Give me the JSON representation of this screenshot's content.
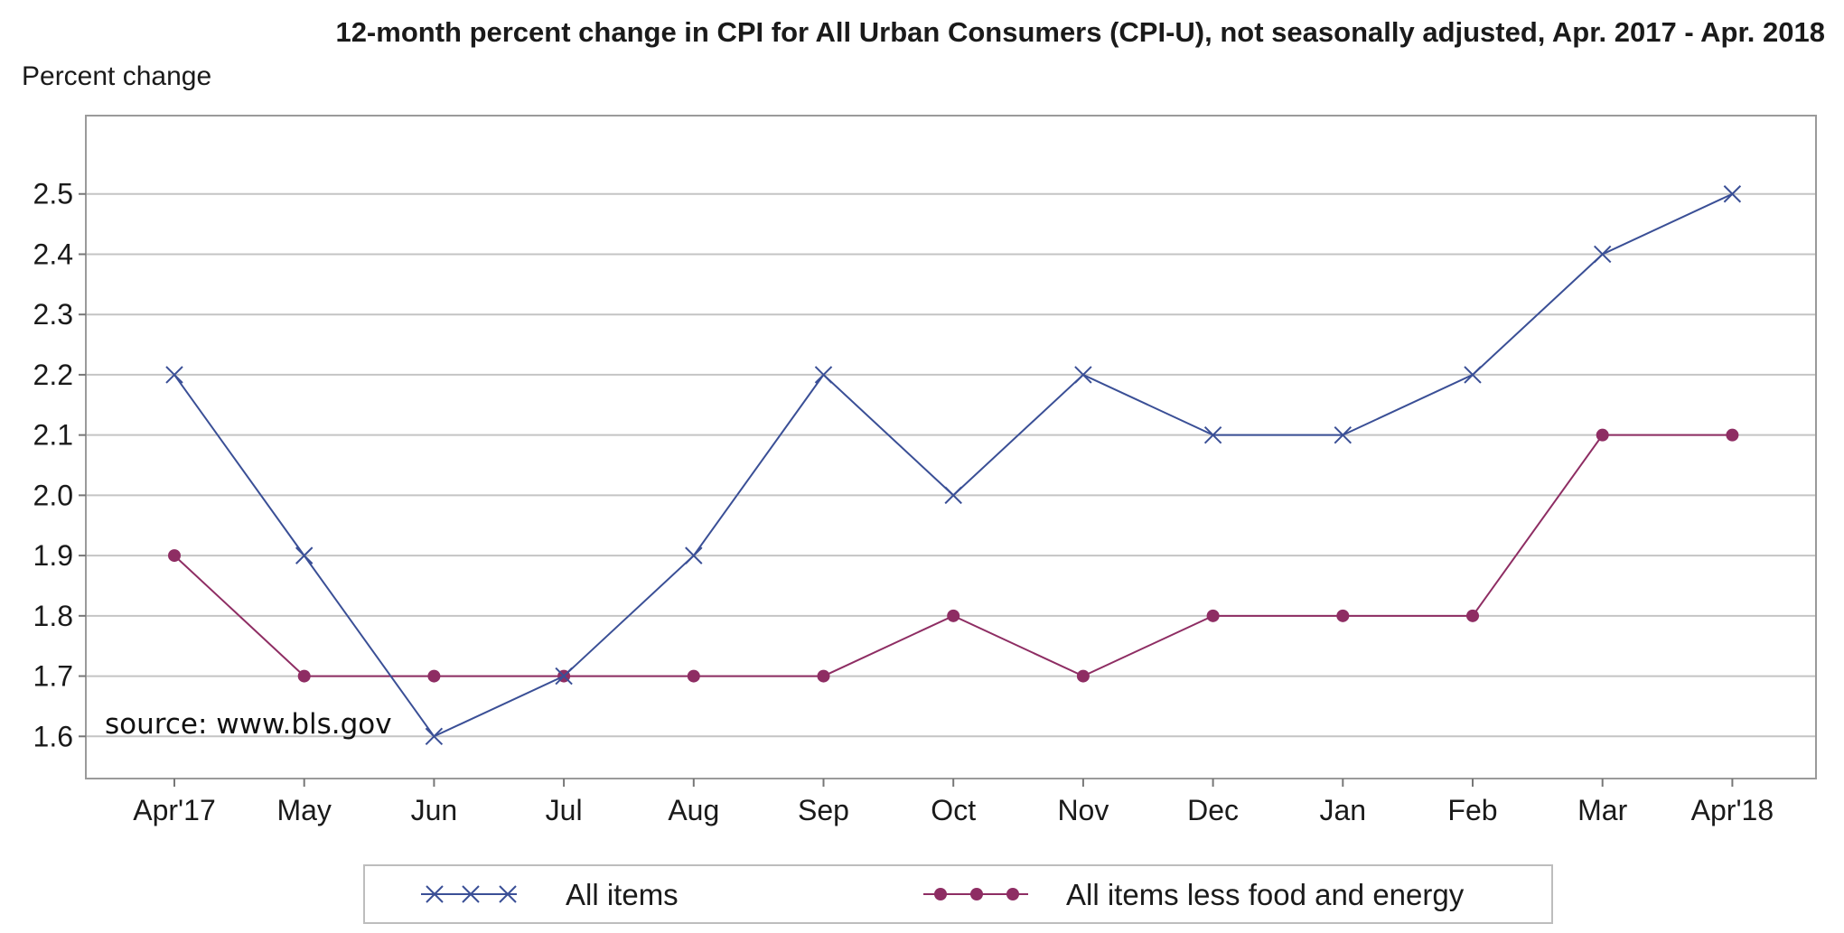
{
  "chart_data": {
    "type": "line",
    "title": "12-month percent change in CPI for All Urban Consumers (CPI-U), not seasonally adjusted, Apr. 2017 - Apr. 2018",
    "ylabel": "Percent change",
    "xlabel": "",
    "categories": [
      "Apr'17",
      "May",
      "Jun",
      "Jul",
      "Aug",
      "Sep",
      "Oct",
      "Nov",
      "Dec",
      "Jan",
      "Feb",
      "Mar",
      "Apr'18"
    ],
    "ylim": [
      1.53,
      2.63
    ],
    "yticks": [
      "2.5",
      "2.4",
      "2.3",
      "2.2",
      "2.1",
      "2.0",
      "1.9",
      "1.8",
      "1.7",
      "1.6"
    ],
    "grid": true,
    "legend_position": "bottom",
    "annotation": "source: www.bls.gov",
    "series": [
      {
        "name": "All items",
        "values": [
          2.2,
          1.9,
          1.6,
          1.7,
          1.9,
          2.2,
          2.0,
          2.2,
          2.1,
          2.1,
          2.2,
          2.4,
          2.5
        ],
        "color": "#3a4f96",
        "marker": "x"
      },
      {
        "name": "All items less food and energy",
        "values": [
          1.9,
          1.7,
          1.7,
          1.7,
          1.7,
          1.7,
          1.8,
          1.7,
          1.8,
          1.8,
          1.8,
          2.1,
          2.1
        ],
        "color": "#8e2d63",
        "marker": "dot"
      }
    ]
  }
}
